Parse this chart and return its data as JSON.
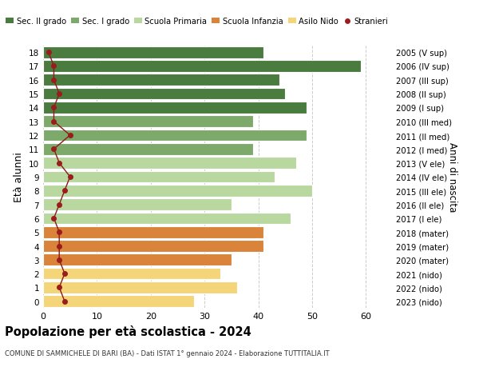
{
  "ages": [
    18,
    17,
    16,
    15,
    14,
    13,
    12,
    11,
    10,
    9,
    8,
    7,
    6,
    5,
    4,
    3,
    2,
    1,
    0
  ],
  "bar_values": [
    41,
    59,
    44,
    45,
    49,
    39,
    49,
    39,
    47,
    43,
    50,
    35,
    46,
    41,
    41,
    35,
    33,
    36,
    28
  ],
  "right_labels_by_age": {
    "18": "2005 (V sup)",
    "17": "2006 (IV sup)",
    "16": "2007 (III sup)",
    "15": "2008 (II sup)",
    "14": "2009 (I sup)",
    "13": "2010 (III med)",
    "12": "2011 (II med)",
    "11": "2012 (I med)",
    "10": "2013 (V ele)",
    "9": "2014 (IV ele)",
    "8": "2015 (III ele)",
    "7": "2016 (II ele)",
    "6": "2017 (I ele)",
    "5": "2018 (mater)",
    "4": "2019 (mater)",
    "3": "2020 (mater)",
    "2": "2021 (nido)",
    "1": "2022 (nido)",
    "0": "2023 (nido)"
  },
  "bar_colors_by_age": {
    "18": "#4a7c3f",
    "17": "#4a7c3f",
    "16": "#4a7c3f",
    "15": "#4a7c3f",
    "14": "#4a7c3f",
    "13": "#7daa6b",
    "12": "#7daa6b",
    "11": "#7daa6b",
    "10": "#b8d8a0",
    "9": "#b8d8a0",
    "8": "#b8d8a0",
    "7": "#b8d8a0",
    "6": "#b8d8a0",
    "5": "#d9843a",
    "4": "#d9843a",
    "3": "#d9843a",
    "2": "#f5d57a",
    "1": "#f5d57a",
    "0": "#f5d57a"
  },
  "stranieri_by_age": {
    "18": 1,
    "17": 2,
    "16": 2,
    "15": 3,
    "14": 2,
    "13": 2,
    "12": 5,
    "11": 2,
    "10": 3,
    "9": 5,
    "8": 4,
    "7": 3,
    "6": 2,
    "5": 3,
    "4": 3,
    "3": 3,
    "2": 4,
    "1": 3,
    "0": 4
  },
  "legend_labels": [
    "Sec. II grado",
    "Sec. I grado",
    "Scuola Primaria",
    "Scuola Infanzia",
    "Asilo Nido",
    "Stranieri"
  ],
  "legend_colors": [
    "#4a7c3f",
    "#7daa6b",
    "#b8d8a0",
    "#d9843a",
    "#f5d57a",
    "#9b1c1c"
  ],
  "title": "Popolazione per età scolastica - 2024",
  "subtitle": "COMUNE DI SAMMICHELE DI BARI (BA) - Dati ISTAT 1° gennaio 2024 - Elaborazione TUTTITALIA.IT",
  "ylabel_left": "Età alunni",
  "ylabel_right": "Anni di nascita",
  "xlim": [
    0,
    65
  ],
  "xticks": [
    0,
    10,
    20,
    30,
    40,
    50,
    60
  ],
  "background_color": "#ffffff",
  "bar_height": 0.85
}
